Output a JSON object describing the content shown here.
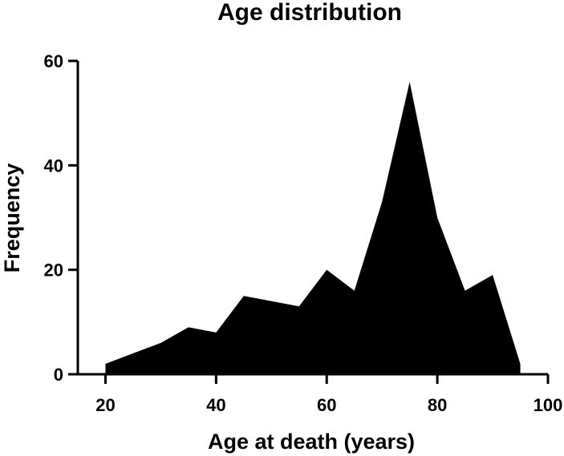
{
  "chart_data": {
    "type": "area",
    "title": "Age distribution",
    "xlabel": "Age at death (years)",
    "ylabel": "Frequency",
    "x": [
      20,
      25,
      30,
      35,
      40,
      45,
      50,
      55,
      60,
      65,
      70,
      75,
      80,
      85,
      90,
      95
    ],
    "series": [
      {
        "values": [
          2,
          4,
          6,
          9,
          8,
          15,
          14,
          13,
          20,
          16,
          33,
          56,
          30,
          16,
          19,
          2
        ],
        "color": "#000000"
      }
    ],
    "xlim": [
      15,
      100
    ],
    "ylim": [
      0,
      60
    ],
    "xticks": [
      20,
      40,
      60,
      80,
      100
    ],
    "yticks": [
      0,
      20,
      40,
      60
    ],
    "grid": false,
    "legend": "none"
  }
}
